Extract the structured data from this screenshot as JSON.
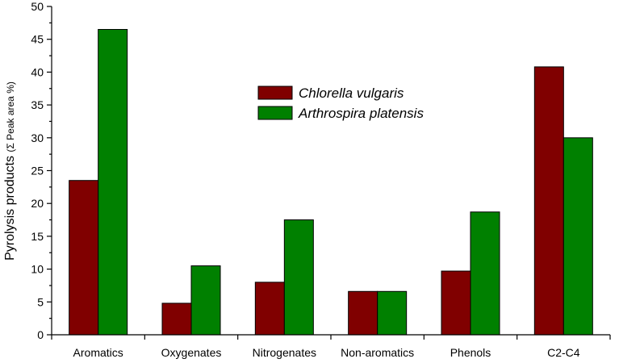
{
  "chart_data": {
    "type": "bar",
    "categories": [
      "Aromatics",
      "Oxygenates",
      "Nitrogenates",
      "Non-aromatics",
      "Phenols",
      "C2-C4"
    ],
    "series": [
      {
        "name": "Chlorella vulgaris",
        "color": "#800000",
        "values": [
          23.5,
          4.8,
          8.0,
          6.6,
          9.7,
          40.8
        ]
      },
      {
        "name": "Arthrospira platensis",
        "color": "#008000",
        "values": [
          46.5,
          10.5,
          17.5,
          6.6,
          18.7,
          30.0
        ]
      }
    ],
    "title": "",
    "xlabel": "",
    "ylabel": {
      "main": "Pyrolysis products ",
      "detail": "(Σ Peak area %)"
    },
    "ylim": [
      0,
      50
    ],
    "yticks": [
      0,
      5,
      10,
      15,
      20,
      25,
      30,
      35,
      40,
      45,
      50
    ],
    "grid": false,
    "legend_position": "top-center"
  }
}
